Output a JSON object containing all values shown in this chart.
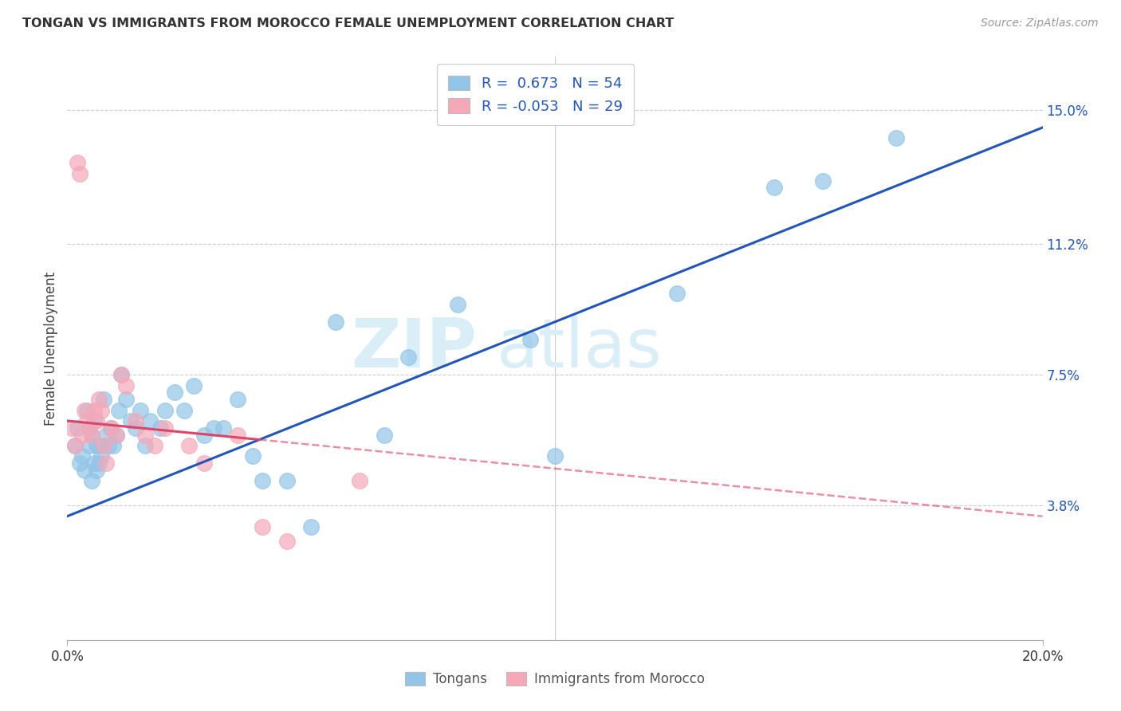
{
  "title": "TONGAN VS IMMIGRANTS FROM MOROCCO FEMALE UNEMPLOYMENT CORRELATION CHART",
  "source": "Source: ZipAtlas.com",
  "ylabel": "Female Unemployment",
  "yticks": [
    3.8,
    7.5,
    11.2,
    15.0
  ],
  "ytick_labels": [
    "3.8%",
    "7.5%",
    "11.2%",
    "15.0%"
  ],
  "xmin": 0.0,
  "xmax": 20.0,
  "ymin": 0.0,
  "ymax": 16.5,
  "blue_label": "Tongans",
  "pink_label": "Immigrants from Morocco",
  "blue_R": "0.673",
  "blue_N": "54",
  "pink_R": "-0.053",
  "pink_N": "29",
  "blue_color": "#92C5E8",
  "pink_color": "#F4A8B8",
  "trend_blue_color": "#2255BB",
  "trend_pink_color": "#DD4466",
  "background_color": "#FFFFFF",
  "watermark_color": "#DAEEF8",
  "blue_x": [
    0.15,
    0.2,
    0.25,
    0.3,
    0.35,
    0.4,
    0.45,
    0.45,
    0.5,
    0.5,
    0.55,
    0.55,
    0.6,
    0.6,
    0.65,
    0.65,
    0.7,
    0.75,
    0.8,
    0.85,
    0.9,
    0.95,
    1.0,
    1.05,
    1.1,
    1.2,
    1.3,
    1.4,
    1.5,
    1.6,
    1.7,
    1.9,
    2.0,
    2.2,
    2.4,
    2.6,
    2.8,
    3.0,
    3.2,
    3.5,
    3.8,
    4.0,
    4.5,
    5.0,
    5.5,
    6.5,
    7.0,
    8.0,
    9.5,
    10.0,
    12.5,
    14.5,
    15.5,
    17.0
  ],
  "blue_y": [
    5.5,
    6.0,
    5.0,
    5.2,
    4.8,
    6.5,
    5.5,
    6.0,
    5.8,
    4.5,
    6.2,
    5.0,
    5.5,
    4.8,
    5.0,
    5.5,
    5.2,
    6.8,
    5.8,
    5.5,
    6.0,
    5.5,
    5.8,
    6.5,
    7.5,
    6.8,
    6.2,
    6.0,
    6.5,
    5.5,
    6.2,
    6.0,
    6.5,
    7.0,
    6.5,
    7.2,
    5.8,
    6.0,
    6.0,
    6.8,
    5.2,
    4.5,
    4.5,
    3.2,
    9.0,
    5.8,
    8.0,
    9.5,
    8.5,
    5.2,
    9.8,
    12.8,
    13.0,
    14.2
  ],
  "pink_x": [
    0.1,
    0.15,
    0.2,
    0.25,
    0.3,
    0.35,
    0.4,
    0.45,
    0.5,
    0.55,
    0.6,
    0.65,
    0.7,
    0.75,
    0.8,
    0.9,
    1.0,
    1.1,
    1.2,
    1.4,
    1.6,
    1.8,
    2.0,
    2.5,
    2.8,
    3.5,
    4.0,
    4.5,
    6.0
  ],
  "pink_y": [
    6.0,
    5.5,
    13.5,
    13.2,
    5.8,
    6.5,
    6.2,
    6.0,
    5.8,
    6.5,
    6.2,
    6.8,
    6.5,
    5.5,
    5.0,
    6.0,
    5.8,
    7.5,
    7.2,
    6.2,
    5.8,
    5.5,
    6.0,
    5.5,
    5.0,
    5.8,
    3.2,
    2.8,
    4.5
  ],
  "blue_trend_x0": 0.0,
  "blue_trend_y0": 3.5,
  "blue_trend_x1": 20.0,
  "blue_trend_y1": 14.5,
  "pink_trend_x0": 0.0,
  "pink_trend_y0": 6.2,
  "pink_trend_x1": 20.0,
  "pink_trend_y1": 3.5
}
